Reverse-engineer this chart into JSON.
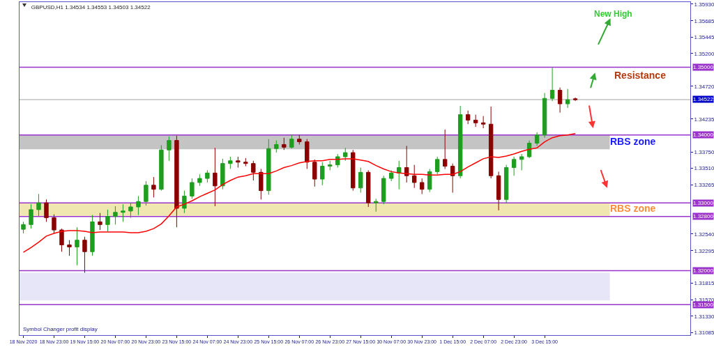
{
  "chart_data": {
    "type": "candlestick",
    "title": "GBPUSD,H1 1.34534 1.34553 1.34503 1.34522",
    "categories": [
      "18 Nov 2020",
      null,
      null,
      null,
      "18 Nov 23:00",
      null,
      null,
      null,
      "19 Nov 15:00",
      null,
      null,
      null,
      "20 Nov 07:00",
      null,
      null,
      null,
      "20 Nov 23:00",
      null,
      null,
      null,
      "23 Nov 15:00",
      null,
      null,
      null,
      "24 Nov 07:00",
      null,
      null,
      null,
      "24 Nov 23:00",
      null,
      null,
      null,
      "25 Nov 15:00",
      null,
      null,
      null,
      "26 Nov 07:00",
      null,
      null,
      null,
      "26 Nov 23:00",
      null,
      null,
      null,
      "27 Nov 15:00",
      null,
      null,
      null,
      "30 Nov 07:00",
      null,
      null,
      null,
      "30 Nov 23:00",
      null,
      null,
      null,
      "1 Dec 15:00",
      null,
      null,
      null,
      "2 Dec 07:00",
      null,
      null,
      null,
      "2 Dec 23:00",
      null,
      null,
      null,
      "3 Dec 15:00",
      null,
      null,
      null,
      null
    ],
    "series": [
      {
        "colors": [
          "#1e9e1e",
          "#1e9e1e",
          "#1e9e1e",
          "#8b0000",
          "#8b0000",
          "#8b0000",
          "#8b0000",
          "#1e9e1e",
          "#8b0000",
          "#1e9e1e",
          "#8b0000",
          "#1e9e1e",
          "#1e9e1e",
          "#1e9e1e",
          "#1e9e1e",
          "#1e9e1e",
          "#1e9e1e",
          "#8b0000",
          "#1e9e1e",
          "#1e9e1e",
          "#8b0000",
          "#1e9e1e",
          "#1e9e1e",
          "#1e9e1e",
          "#1e9e1e",
          "#8b0000",
          "#1e9e1e",
          "#1e9e1e",
          "#8b0000",
          "#8b0000",
          "#8b0000",
          "#8b0000",
          "#1e9e1e",
          "#1e9e1e",
          "#8b0000",
          "#1e9e1e",
          "#8b0000",
          "#8b0000",
          "#8b0000",
          "#1e9e1e",
          "#1e9e1e",
          "#1e9e1e",
          "#1e9e1e",
          "#8b0000",
          "#1e9e1e",
          "#8b0000",
          "#1e9e1e",
          "#1e9e1e",
          "#1e9e1e",
          "#1e9e1e",
          "#8b0000",
          "#8b0000",
          "#8b0000",
          "#1e9e1e",
          "#1e9e1e",
          "#8b0000",
          "#8b0000",
          "#1e9e1e",
          "#8b0000",
          "#8b0000",
          "#8b0000",
          "#8b0000",
          "#8b0000",
          "#1e9e1e",
          "#1e9e1e",
          "#1e9e1e",
          "#1e9e1e",
          "#1e9e1e",
          "#1e9e1e",
          "#1e9e1e",
          "#8b0000",
          "#1e9e1e",
          "#8b0000"
        ],
        "ohlc": [
          [
            1.3261,
            1.3272,
            1.3255,
            1.3268
          ],
          [
            1.3268,
            1.3298,
            1.3262,
            1.329
          ],
          [
            1.329,
            1.3313,
            1.328,
            1.33
          ],
          [
            1.33,
            1.3305,
            1.3272,
            1.3278
          ],
          [
            1.3278,
            1.3283,
            1.3255,
            1.326
          ],
          [
            1.326,
            1.3262,
            1.3228,
            1.3238
          ],
          [
            1.3238,
            1.3245,
            1.3222,
            1.3235
          ],
          [
            1.3235,
            1.3264,
            1.3208,
            1.3245
          ],
          [
            1.3245,
            1.325,
            1.3197,
            1.3228
          ],
          [
            1.3228,
            1.3282,
            1.3222,
            1.3272
          ],
          [
            1.3272,
            1.3285,
            1.326,
            1.3268
          ],
          [
            1.3268,
            1.329,
            1.3258,
            1.328
          ],
          [
            1.328,
            1.3295,
            1.3268,
            1.3286
          ],
          [
            1.3286,
            1.3298,
            1.3272,
            1.3288
          ],
          [
            1.3288,
            1.33,
            1.3278,
            1.3294
          ],
          [
            1.3294,
            1.331,
            1.3282,
            1.3302
          ],
          [
            1.3302,
            1.3332,
            1.3296,
            1.3326
          ],
          [
            1.3326,
            1.3338,
            1.3308,
            1.332
          ],
          [
            1.332,
            1.3385,
            1.3318,
            1.3378
          ],
          [
            1.3378,
            1.3398,
            1.3362,
            1.3392
          ],
          [
            1.3392,
            1.3399,
            1.3264,
            1.3292
          ],
          [
            1.3292,
            1.3318,
            1.3285,
            1.331
          ],
          [
            1.331,
            1.3336,
            1.3306,
            1.333
          ],
          [
            1.333,
            1.3342,
            1.3325,
            1.3336
          ],
          [
            1.3336,
            1.3348,
            1.333,
            1.3344
          ],
          [
            1.3344,
            1.3381,
            1.3295,
            1.3325
          ],
          [
            1.3325,
            1.3365,
            1.332,
            1.3358
          ],
          [
            1.3358,
            1.3368,
            1.335,
            1.3362
          ],
          [
            1.3362,
            1.3368,
            1.3352,
            1.336
          ],
          [
            1.336,
            1.3366,
            1.3354,
            1.3358
          ],
          [
            1.3358,
            1.3362,
            1.3333,
            1.3345
          ],
          [
            1.3345,
            1.335,
            1.3305,
            1.3318
          ],
          [
            1.3318,
            1.3394,
            1.3312,
            1.338
          ],
          [
            1.338,
            1.3392,
            1.3374,
            1.3386
          ],
          [
            1.3386,
            1.3396,
            1.3378,
            1.3382
          ],
          [
            1.3382,
            1.34,
            1.338,
            1.3394
          ],
          [
            1.3394,
            1.34,
            1.3386,
            1.339
          ],
          [
            1.339,
            1.3394,
            1.335,
            1.336
          ],
          [
            1.336,
            1.3364,
            1.3324,
            1.3335
          ],
          [
            1.3335,
            1.336,
            1.3326,
            1.3354
          ],
          [
            1.3354,
            1.3362,
            1.3348,
            1.3356
          ],
          [
            1.3356,
            1.3372,
            1.3352,
            1.3368
          ],
          [
            1.3368,
            1.3381,
            1.3362,
            1.3374
          ],
          [
            1.3374,
            1.3378,
            1.3318,
            1.3322
          ],
          [
            1.3322,
            1.3352,
            1.3315,
            1.3345
          ],
          [
            1.3345,
            1.3348,
            1.3294,
            1.33
          ],
          [
            1.33,
            1.3306,
            1.3287,
            1.3302
          ],
          [
            1.3302,
            1.334,
            1.3298,
            1.3336
          ],
          [
            1.3336,
            1.3348,
            1.3332,
            1.3344
          ],
          [
            1.3344,
            1.3362,
            1.332,
            1.3352
          ],
          [
            1.3352,
            1.3384,
            1.333,
            1.334
          ],
          [
            1.334,
            1.3356,
            1.3322,
            1.333
          ],
          [
            1.333,
            1.3336,
            1.3313,
            1.332
          ],
          [
            1.332,
            1.335,
            1.3316,
            1.3346
          ],
          [
            1.3346,
            1.3368,
            1.3342,
            1.3364
          ],
          [
            1.3364,
            1.3408,
            1.335,
            1.3354
          ],
          [
            1.3354,
            1.3358,
            1.3315,
            1.334
          ],
          [
            1.334,
            1.3443,
            1.3336,
            1.343
          ],
          [
            1.343,
            1.3436,
            1.3416,
            1.3422
          ],
          [
            1.3422,
            1.343,
            1.3412,
            1.3418
          ],
          [
            1.3418,
            1.3428,
            1.341,
            1.3416
          ],
          [
            1.3416,
            1.3442,
            1.3336,
            1.334
          ],
          [
            1.334,
            1.3346,
            1.3289,
            1.3305
          ],
          [
            1.3305,
            1.3356,
            1.33,
            1.3352
          ],
          [
            1.3352,
            1.3368,
            1.334,
            1.3364
          ],
          [
            1.3364,
            1.3372,
            1.3348,
            1.3368
          ],
          [
            1.3368,
            1.3392,
            1.3366,
            1.3388
          ],
          [
            1.3388,
            1.3404,
            1.3384,
            1.34
          ],
          [
            1.34,
            1.3462,
            1.3396,
            1.3454
          ],
          [
            1.3454,
            1.3499,
            1.345,
            1.3466
          ],
          [
            1.3466,
            1.347,
            1.3433,
            1.3446
          ],
          [
            1.3446,
            1.3468,
            1.344,
            1.3452
          ],
          [
            1.34534,
            1.34553,
            1.34503,
            1.34522
          ]
        ]
      },
      {
        "type": "line",
        "color": "#ff0000",
        "values": [
          1.3227,
          1.3234,
          1.3242,
          1.3251,
          1.3255,
          1.3258,
          1.3259,
          1.3259,
          1.3258,
          1.3256,
          1.3257,
          1.3257,
          1.3257,
          1.3257,
          1.3256,
          1.3256,
          1.3258,
          1.3262,
          1.3269,
          1.3281,
          1.3294,
          1.3298,
          1.3303,
          1.3309,
          1.3314,
          1.3319,
          1.3327,
          1.3333,
          1.3338,
          1.334,
          1.3343,
          1.3343,
          1.3343,
          1.3347,
          1.3352,
          1.3355,
          1.3359,
          1.3361,
          1.3362,
          1.3362,
          1.3364,
          1.3364,
          1.3365,
          1.3365,
          1.3363,
          1.3361,
          1.3355,
          1.335,
          1.3346,
          1.3344,
          1.3343,
          1.3342,
          1.3342,
          1.3341,
          1.3341,
          1.3342,
          1.3342,
          1.3346,
          1.3353,
          1.3359,
          1.3365,
          1.3368,
          1.3367,
          1.3369,
          1.3372,
          1.3376,
          1.3379,
          1.3381,
          1.339,
          1.3396,
          1.3399,
          1.34,
          1.3402
        ]
      }
    ],
    "ylim": [
      1.3105,
      1.3596
    ],
    "yticks": [
      {
        "value": 1.3593,
        "label": "1.35930"
      },
      {
        "value": 1.35685,
        "label": "1.35685"
      },
      {
        "value": 1.35445,
        "label": "1.35445"
      },
      {
        "value": 1.352,
        "label": "1.35200"
      },
      {
        "value": 1.3472,
        "label": "1.34720"
      },
      {
        "value": 1.34235,
        "label": "1.34235"
      },
      {
        "value": 1.3375,
        "label": "1.33750"
      },
      {
        "value": 1.3351,
        "label": "1.33510"
      },
      {
        "value": 1.33265,
        "label": "1.33265"
      },
      {
        "value": 1.3254,
        "label": "1.32540"
      },
      {
        "value": 1.32295,
        "label": "1.32295"
      },
      {
        "value": 1.31815,
        "label": "1.31815"
      },
      {
        "value": 1.3157,
        "label": "1.31570"
      },
      {
        "value": 1.3133,
        "label": "1.31330"
      },
      {
        "value": 1.31085,
        "label": "1.31085"
      }
    ],
    "bands": [
      {
        "axis": "y",
        "from": 1.3379,
        "to": 1.34,
        "color": "#c4c4c4"
      },
      {
        "axis": "y",
        "from": 1.3281,
        "to": 1.33,
        "color": "#f0e6b0"
      },
      {
        "axis": "y",
        "from": 1.3156,
        "to": 1.3197,
        "color": "#e6e6f8"
      }
    ],
    "ref_lines": [
      {
        "axis": "y",
        "value": 1.35,
        "label": "1.35000",
        "color": "#9933cc"
      },
      {
        "axis": "y",
        "value": 1.34522,
        "label": "1.34522",
        "color": "#a0a0a0"
      },
      {
        "axis": "y",
        "value": 1.34,
        "label": "1.34000",
        "color": "#9933cc"
      },
      {
        "axis": "y",
        "value": 1.33,
        "label": "1.33000",
        "color": "#9933cc"
      },
      {
        "axis": "y",
        "value": 1.328,
        "label": "1.32800",
        "color": "#9933cc"
      },
      {
        "axis": "y",
        "value": 1.32,
        "label": "1.32000",
        "color": "#9933cc"
      },
      {
        "axis": "y",
        "value": 1.315,
        "label": "1.31500",
        "color": "#9933cc"
      }
    ],
    "annotations": [
      "New High",
      "Resistance",
      "RBS zone",
      "RBS zone",
      "Symbol Changer profit display"
    ],
    "grid": false
  }
}
